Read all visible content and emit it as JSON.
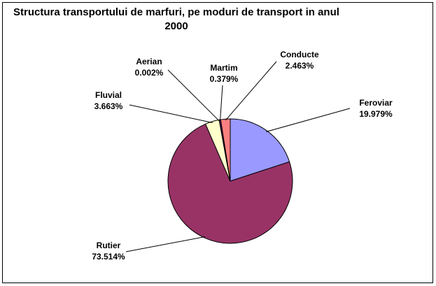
{
  "chart_data": {
    "type": "pie",
    "title": "Structura transportului de marfuri, pe moduri de transport in anul 2000",
    "categories": [
      "Feroviar",
      "Rutier",
      "Fluvial",
      "Aerian",
      "Martim",
      "Conducte"
    ],
    "values": [
      19.979,
      73.514,
      3.663,
      0.002,
      0.379,
      2.463
    ],
    "value_labels": [
      "19.979%",
      "73.514%",
      "3.663%",
      "0.002%",
      "0.379%",
      "2.463%"
    ],
    "colors": [
      "#9999ff",
      "#993366",
      "#ffffcc",
      "#ccffff",
      "#660066",
      "#ff8080"
    ]
  }
}
